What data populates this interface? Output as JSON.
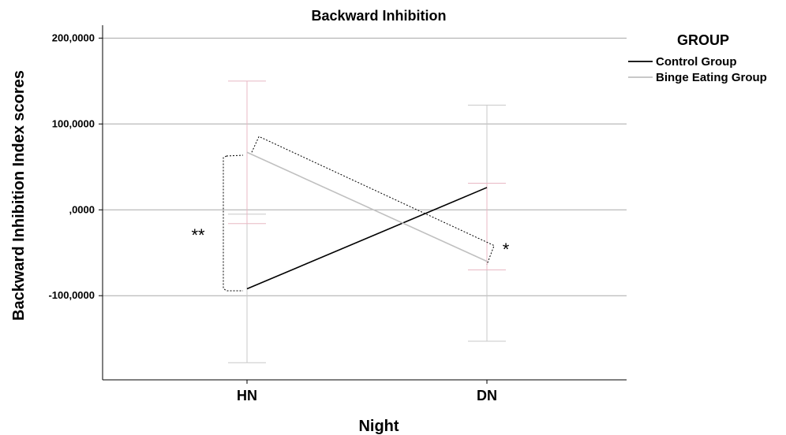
{
  "chart_data": {
    "type": "line",
    "title": "Backward Inhibition",
    "xlabel": "Night",
    "ylabel": "Backward Inhibition Index scores",
    "categories": [
      "HN",
      "DN"
    ],
    "ylim": [
      -198000,
      215000
    ],
    "yticks": [
      200000,
      100000,
      0,
      -100000
    ],
    "ytick_labels": [
      "200,0000",
      "100,0000",
      ",0000",
      "-100,0000"
    ],
    "grid": true,
    "legend": {
      "title": "GROUP",
      "placement": "right"
    },
    "series": [
      {
        "name": "Control Group",
        "color": "#000000",
        "values": [
          -92000,
          26000
        ],
        "error_low": [
          -178000,
          -153000
        ],
        "error_high": [
          -5000,
          122000
        ],
        "error_color": "#c8c8c8"
      },
      {
        "name": "Binge Eating Group",
        "color": "#c0c0c0",
        "values": [
          67000,
          -60000
        ],
        "error_low": [
          -16000,
          -70000
        ],
        "error_high": [
          150000,
          31000
        ],
        "error_color": "#e8b8c4"
      }
    ],
    "annotations": [
      {
        "text": "**",
        "category": "HN"
      },
      {
        "text": "*",
        "category": "DN"
      }
    ]
  }
}
